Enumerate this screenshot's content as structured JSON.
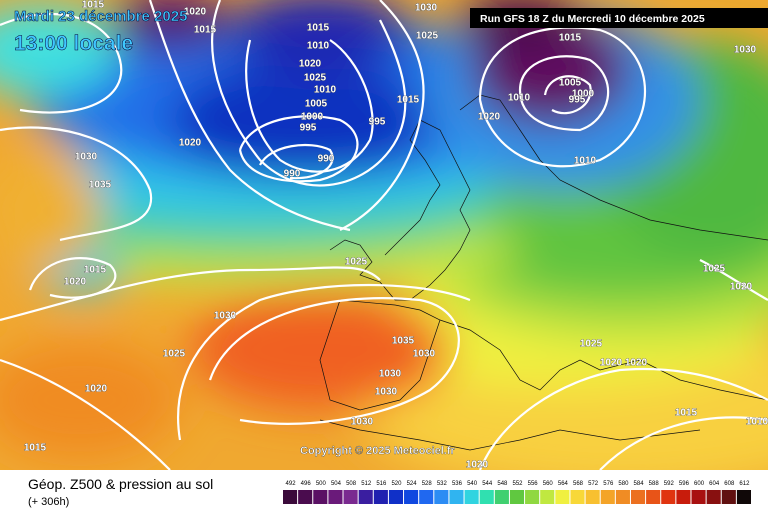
{
  "header": {
    "date": "Mardi 23 décembre 2025",
    "time": "13:00 locale",
    "run": "Run GFS 18 Z du Mercredi 10 décembre 2025"
  },
  "copyright": "Copyright © 2025 Meteociel.fr",
  "footer": {
    "title": "Géop. Z500 & pression au sol",
    "lead": "(+ 306h)"
  },
  "legend": {
    "values": [
      492,
      496,
      500,
      504,
      508,
      512,
      516,
      520,
      524,
      528,
      532,
      536,
      540,
      544,
      548,
      552,
      556,
      560,
      564,
      568,
      572,
      576,
      580,
      584,
      588,
      592,
      596,
      600,
      604,
      608,
      612
    ],
    "colors": [
      "#3a0a3a",
      "#4a0c4e",
      "#5a1064",
      "#6a1a7a",
      "#7a2a90",
      "#3a1ea0",
      "#2020b0",
      "#1030c8",
      "#1048e0",
      "#2068f0",
      "#2c8cf4",
      "#30b4f0",
      "#30d4e0",
      "#30e0b0",
      "#40d070",
      "#60c840",
      "#90d840",
      "#c0e840",
      "#f0f040",
      "#f8d838",
      "#f8c030",
      "#f4a428",
      "#f08c24",
      "#ec7020",
      "#e85418",
      "#e03410",
      "#c81c0c",
      "#a81010",
      "#881010",
      "#601010",
      "#100808"
    ]
  },
  "isobars": [
    "1015",
    "1020",
    "1030",
    "1015",
    "1010",
    "1020",
    "1025",
    "1010",
    "1005",
    "1000",
    "995",
    "995",
    "990",
    "990",
    "1015",
    "1025",
    "1020",
    "1015",
    "1005",
    "1000",
    "995",
    "1010",
    "1010",
    "1020",
    "1030",
    "1035",
    "1015",
    "1020",
    "1025",
    "1030",
    "1025",
    "1020",
    "1015",
    "1035",
    "1030",
    "1030",
    "1030",
    "1030",
    "1025",
    "1020",
    "1020",
    "1025",
    "1020",
    "1015",
    "1010",
    "1020",
    "1030",
    "1015"
  ]
}
